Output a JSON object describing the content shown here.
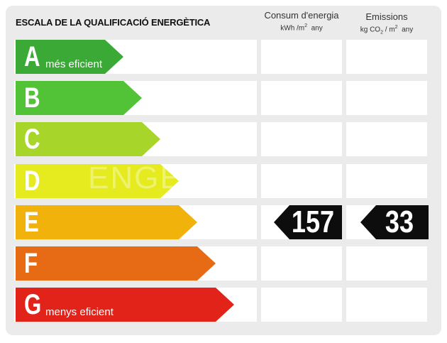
{
  "title": "ESCALA DE LA QUALIFICACIÓ ENERGÈTICA",
  "columns": {
    "consumption": {
      "label": "Consum d'energia",
      "unit_prefix": "kWh /m",
      "unit_sup": "2",
      "unit_suffix": "any"
    },
    "emissions": {
      "label": "Emissions",
      "unit_prefix": "kg CO",
      "unit_sub": "2",
      "unit_mid": "/ m",
      "unit_sup": "2",
      "unit_suffix": "any"
    }
  },
  "ratings": [
    {
      "letter": "A",
      "label": "més eficient",
      "color": "#3aa935"
    },
    {
      "letter": "B",
      "label": "",
      "color": "#52c337"
    },
    {
      "letter": "C",
      "label": "",
      "color": "#a8d52a"
    },
    {
      "letter": "D",
      "label": "",
      "color": "#e5eb1f"
    },
    {
      "letter": "E",
      "label": "",
      "color": "#f0b20b"
    },
    {
      "letter": "F",
      "label": "",
      "color": "#e76b15"
    },
    {
      "letter": "G",
      "label": "menys eficient",
      "color": "#e2231a"
    }
  ],
  "current": {
    "rating": "E",
    "consumption": "157",
    "emissions": "33"
  },
  "watermark": "ENGEL"
}
